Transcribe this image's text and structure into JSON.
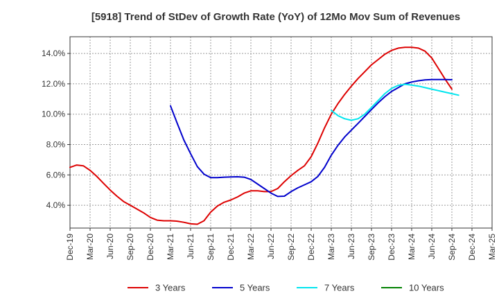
{
  "chart_data": {
    "type": "line",
    "title": "[5918]  Trend of StDev of Growth Rate (YoY) of 12Mo Mov Sum of Revenues",
    "xlabel": "",
    "ylabel": "",
    "x_ticks": [
      "Dec-19",
      "Mar-20",
      "Jun-20",
      "Sep-20",
      "Dec-20",
      "Mar-21",
      "Jun-21",
      "Sep-21",
      "Dec-21",
      "Mar-22",
      "Jun-22",
      "Sep-22",
      "Dec-22",
      "Mar-23",
      "Jun-23",
      "Sep-23",
      "Dec-23",
      "Mar-24",
      "Jun-24",
      "Sep-24",
      "Dec-24",
      "Mar-25"
    ],
    "y_ticks": [
      "4.0%",
      "6.0%",
      "8.0%",
      "10.0%",
      "12.0%",
      "14.0%"
    ],
    "y_tick_values": [
      4,
      6,
      8,
      10,
      12,
      14
    ],
    "ylim": [
      2.5,
      15.1
    ],
    "x_range_months": [
      0,
      63
    ],
    "grid": true,
    "legend_position": "bottom",
    "series": [
      {
        "name": "3 Years",
        "color": "#dd0000",
        "start_month": 0,
        "values": [
          6.5,
          6.65,
          6.6,
          6.3,
          5.9,
          5.45,
          5.0,
          4.6,
          4.25,
          4.0,
          3.75,
          3.5,
          3.2,
          3.02,
          2.98,
          2.98,
          2.95,
          2.88,
          2.78,
          2.75,
          2.98,
          3.55,
          3.95,
          4.2,
          4.35,
          4.55,
          4.8,
          4.95,
          4.95,
          4.9,
          4.9,
          5.1,
          5.55,
          5.95,
          6.3,
          6.6,
          7.2,
          8.1,
          9.1,
          10.0,
          10.7,
          11.3,
          11.85,
          12.35,
          12.8,
          13.25,
          13.6,
          13.95,
          14.2,
          14.35,
          14.4,
          14.4,
          14.35,
          14.15,
          13.7,
          13.0,
          12.3,
          11.65
        ]
      },
      {
        "name": "5 Years",
        "color": "#0000cc",
        "start_month": 15,
        "values": [
          10.55,
          9.4,
          8.3,
          7.4,
          6.55,
          6.05,
          5.82,
          5.82,
          5.85,
          5.87,
          5.88,
          5.85,
          5.7,
          5.4,
          5.1,
          4.8,
          4.58,
          4.6,
          4.9,
          5.15,
          5.35,
          5.55,
          5.9,
          6.5,
          7.3,
          7.95,
          8.5,
          8.95,
          9.4,
          9.85,
          10.3,
          10.75,
          11.15,
          11.5,
          11.75,
          12.0,
          12.12,
          12.2,
          12.26,
          12.28,
          12.28,
          12.28,
          12.27
        ]
      },
      {
        "name": "7 Years",
        "color": "#00e5ee",
        "start_month": 39,
        "values": [
          10.25,
          9.9,
          9.7,
          9.6,
          9.7,
          10.0,
          10.45,
          10.9,
          11.35,
          11.7,
          11.9,
          11.97,
          11.92,
          11.85,
          11.75,
          11.65,
          11.55,
          11.45,
          11.35,
          11.25
        ]
      },
      {
        "name": "10 Years",
        "color": "#008000",
        "start_month": 0,
        "values": []
      }
    ]
  }
}
